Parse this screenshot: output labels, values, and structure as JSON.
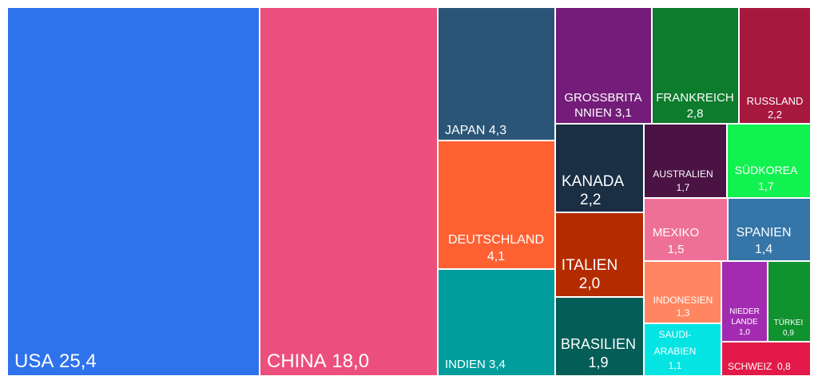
{
  "chart_data": {
    "type": "treemap",
    "items": [
      {
        "name": "USA",
        "value": "25,4",
        "color": "#2e72ec"
      },
      {
        "name": "CHINA",
        "value": "18,0",
        "color": "#ec4f7d"
      },
      {
        "name": "JAPAN",
        "value": "4,3",
        "color": "#2a5577"
      },
      {
        "name": "DEUTSCHLAND",
        "value": "4,1",
        "color": "#ff6132"
      },
      {
        "name": "INDIEN",
        "value": "3,4",
        "color": "#009d9c"
      },
      {
        "name": "GROSSBRITANNIEN",
        "value": "3,1",
        "color": "#731c79"
      },
      {
        "name": "FRANKREICH",
        "value": "2,8",
        "color": "#0d7c2d"
      },
      {
        "name": "RUSSLAND",
        "value": "2,2",
        "color": "#a7183e"
      },
      {
        "name": "KANADA",
        "value": "2,2",
        "color": "#1a2e44"
      },
      {
        "name": "ITALIEN",
        "value": "2,0",
        "color": "#b42b00"
      },
      {
        "name": "BRASILIEN",
        "value": "1,9",
        "color": "#045d57"
      },
      {
        "name": "AUSTRALIEN",
        "value": "1,7",
        "color": "#4a1344"
      },
      {
        "name": "SÜDKOREA",
        "value": "1,7",
        "color": "#11f150"
      },
      {
        "name": "MEXIKO",
        "value": "1,5",
        "color": "#ee7098"
      },
      {
        "name": "SPANIEN",
        "value": "1,4",
        "color": "#3575a7"
      },
      {
        "name": "INDONESIEN",
        "value": "1,3",
        "color": "#ff8661"
      },
      {
        "name": "SAUDI-ARABIEN",
        "value": "1,1",
        "color": "#04e4e3"
      },
      {
        "name": "NIEDERLANDE",
        "value": "1,0",
        "color": "#a32bb1"
      },
      {
        "name": "TÜRKEI",
        "value": "0,9",
        "color": "#10922f"
      },
      {
        "name": "SCHWEIZ",
        "value": "0,8",
        "color": "#e31a49"
      }
    ]
  }
}
